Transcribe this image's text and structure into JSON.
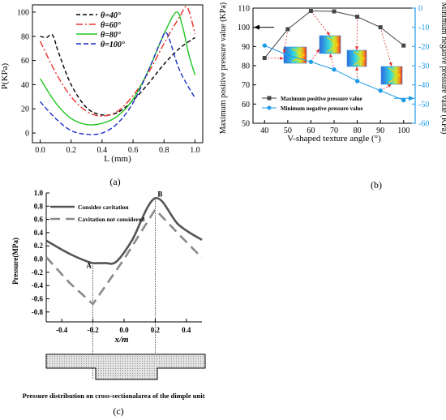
{
  "panels": {
    "a": {
      "label": "(a)",
      "chart_data": {
        "type": "line",
        "xlabel": "L (mm)",
        "ylabel": "P(KPa)",
        "xlim": [
          -0.05,
          1.05
        ],
        "ylim": [
          -8,
          106
        ],
        "xticks": [
          "0.0",
          "0.2",
          "0.4",
          "0.6",
          "0.8",
          "1.0"
        ],
        "yticks": [
          "0",
          "20",
          "40",
          "60",
          "80",
          "100"
        ],
        "legend_position": "top-left",
        "series": [
          {
            "name": "θ=40°",
            "color": "#000000",
            "dash": "5,3",
            "x": [
              0.0,
              0.04,
              0.08,
              0.12,
              0.2,
              0.3,
              0.4,
              0.5,
              0.6,
              0.7,
              0.8,
              0.9,
              1.0
            ],
            "y": [
              80,
              79,
              81,
              66,
              40,
              21,
              15,
              17,
              27,
              41,
              57,
              70,
              79
            ]
          },
          {
            "name": "θ=60°",
            "color": "#e8302a",
            "dash": "8,3,2,3",
            "x": [
              0.0,
              0.1,
              0.2,
              0.3,
              0.4,
              0.5,
              0.6,
              0.7,
              0.8,
              0.9,
              0.95,
              1.0
            ],
            "y": [
              76,
              50,
              30,
              18,
              14,
              18,
              31,
              50,
              74,
              96,
              104,
              82
            ]
          },
          {
            "name": "θ=80°",
            "color": "#21c421",
            "dash": "",
            "x": [
              0.0,
              0.1,
              0.2,
              0.3,
              0.4,
              0.5,
              0.6,
              0.7,
              0.8,
              0.88,
              0.92,
              0.96,
              1.0
            ],
            "y": [
              45,
              25,
              12,
              7,
              8,
              14,
              28,
              52,
              82,
              100,
              88,
              65,
              48
            ]
          },
          {
            "name": "θ=100°",
            "color": "#1a2fc4",
            "dash": "6,3",
            "x": [
              0.0,
              0.1,
              0.2,
              0.3,
              0.4,
              0.5,
              0.6,
              0.7,
              0.78,
              0.82,
              0.9,
              1.0
            ],
            "y": [
              26,
              12,
              2,
              -1,
              0,
              8,
              25,
              52,
              76,
              82,
              52,
              29
            ]
          }
        ]
      }
    },
    "b": {
      "label": "(b)",
      "chart_data": {
        "type": "line",
        "xlabel": "V-shaped texture angle (°)",
        "ylabel_left": "Maximum positive pressure value (KPa)",
        "ylabel_right": "Minimum negative pressure value (KPa)",
        "categories": [
          40,
          50,
          60,
          70,
          80,
          90,
          100
        ],
        "xticks": [
          "40",
          "50",
          "60",
          "70",
          "80",
          "90",
          "100"
        ],
        "yticks_left": [
          "50",
          "60",
          "70",
          "80",
          "90",
          "100",
          "110"
        ],
        "yticks_right": [
          "0",
          "-10",
          "-20",
          "-30",
          "-40",
          "-50",
          "-60"
        ],
        "ylim_left": [
          50,
          110
        ],
        "ylim_right": [
          -60,
          0
        ],
        "legend_position": "bottom-left",
        "series": [
          {
            "name": "Maximum positive pressure value",
            "color": "#444444",
            "marker": "square",
            "axis": "left",
            "values": [
              84,
              99,
              108.5,
              108.3,
              105.5,
              100,
              90.5
            ]
          },
          {
            "name": "Minimum negative pressure value",
            "color": "#1e9be8",
            "marker": "circle",
            "axis": "right",
            "values": [
              -19.5,
              -24.5,
              -28,
              -32,
              -38,
              -43,
              -48
            ]
          }
        ]
      }
    },
    "c": {
      "label": "(c)",
      "caption": "Pressure distribution on cross-sectionalarea of the dimple unit",
      "chart_data": {
        "type": "line",
        "xlabel": "x/m",
        "ylabel": "Pressure(MPa)",
        "xlim": [
          -0.5,
          0.5
        ],
        "ylim": [
          -0.95,
          1.0
        ],
        "xticks": [
          "-0.4",
          "-0.2",
          "0.0",
          "0.2",
          "0.4"
        ],
        "yticks": [
          "-0.8",
          "-0.6",
          "-0.4",
          "-0.2",
          "0.0",
          "0.2",
          "0.4",
          "0.6",
          "0.8",
          "1.0"
        ],
        "legend_position": "top-left",
        "annotations": [
          {
            "text": "A",
            "x": -0.2,
            "y": -0.06
          },
          {
            "text": "B",
            "x": 0.2,
            "y": 0.92
          }
        ],
        "series": [
          {
            "name": "Consider cavitation",
            "color": "#555555",
            "dash": "",
            "x": [
              -0.5,
              -0.35,
              -0.22,
              -0.17,
              -0.12,
              -0.05,
              0.05,
              0.2,
              0.35,
              0.5
            ],
            "y": [
              0.28,
              0.08,
              -0.05,
              -0.06,
              -0.06,
              -0.04,
              0.28,
              0.92,
              0.52,
              0.29
            ]
          },
          {
            "name": "Cavitation not considered",
            "color": "#8a8a8a",
            "dash": "12,7",
            "x": [
              -0.5,
              -0.35,
              -0.2,
              0.0,
              0.2,
              0.35,
              0.5
            ],
            "y": [
              0.03,
              -0.36,
              -0.68,
              0.0,
              0.75,
              0.38,
              0.02
            ]
          }
        ]
      }
    }
  }
}
